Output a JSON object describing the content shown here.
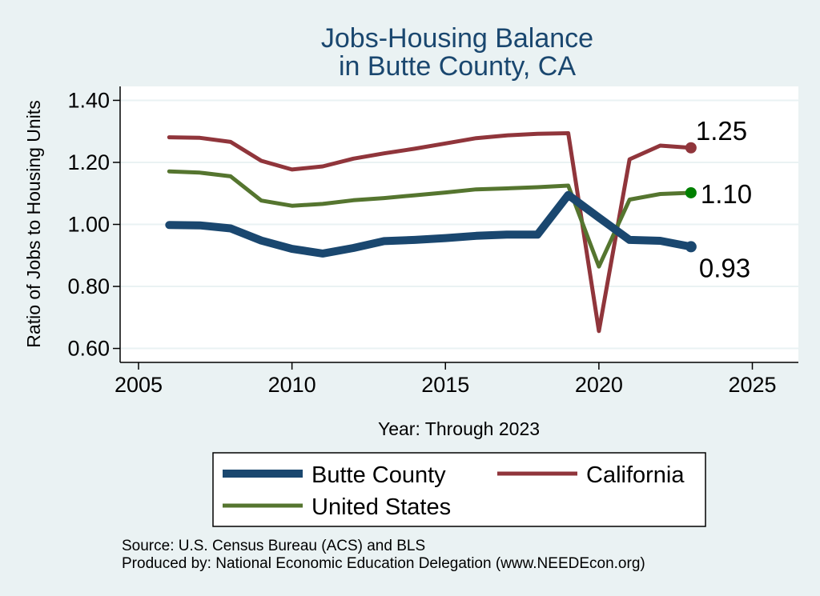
{
  "chart_data": {
    "type": "line",
    "title": [
      "Jobs-Housing Balance",
      "in Butte County, CA"
    ],
    "xlabel": "Year: Through 2023",
    "ylabel": "Ratio of Jobs to Housing Units",
    "xlim": [
      2004.4,
      2026.5
    ],
    "ylim": [
      0.555,
      1.445
    ],
    "xticks": [
      2005,
      2010,
      2015,
      2020,
      2025
    ],
    "xtick_labels": [
      "2005",
      "2010",
      "2015",
      "2020",
      "2025"
    ],
    "yticks": [
      0.6,
      0.8,
      1.0,
      1.2,
      1.4
    ],
    "ytick_labels": [
      "0.60",
      "0.80",
      "1.00",
      "1.20",
      "1.40"
    ],
    "grid": true,
    "x": [
      2006,
      2007,
      2008,
      2009,
      2010,
      2011,
      2012,
      2013,
      2014,
      2015,
      2016,
      2017,
      2018,
      2019,
      2020,
      2021,
      2022,
      2023
    ],
    "series": [
      {
        "name": "Butte County",
        "color": "#1a476f",
        "values": [
          0.998,
          0.997,
          0.987,
          0.948,
          0.921,
          0.906,
          0.924,
          0.946,
          0.95,
          0.956,
          0.963,
          0.967,
          0.967,
          1.095,
          1.022,
          0.95,
          0.947,
          0.928
        ],
        "end_label": "0.93"
      },
      {
        "name": "California",
        "color": "#90353b",
        "values": [
          1.281,
          1.279,
          1.266,
          1.205,
          1.177,
          1.187,
          1.212,
          1.229,
          1.244,
          1.261,
          1.278,
          1.287,
          1.292,
          1.294,
          0.656,
          1.21,
          1.254,
          1.247
        ],
        "end_label": "1.25",
        "end_marker_color": "#90353b"
      },
      {
        "name": "United States",
        "color": "#55752f",
        "values": [
          1.171,
          1.167,
          1.155,
          1.077,
          1.06,
          1.066,
          1.078,
          1.085,
          1.094,
          1.103,
          1.113,
          1.116,
          1.12,
          1.125,
          0.864,
          1.08,
          1.098,
          1.102
        ],
        "end_label": "1.10",
        "end_marker_color": "#008000"
      }
    ],
    "legend": {
      "position": "bottom",
      "entries": [
        "Butte County",
        "California",
        "United States"
      ]
    }
  },
  "source_note": {
    "line1": "Source: U.S. Census Bureau (ACS) and BLS",
    "line2": "Produced by: National Economic Education Delegation (www.NEEDEcon.org)"
  },
  "colors": {
    "background": "#eaf2f3",
    "plot_area": "#ffffff",
    "title": "#1a476f"
  }
}
